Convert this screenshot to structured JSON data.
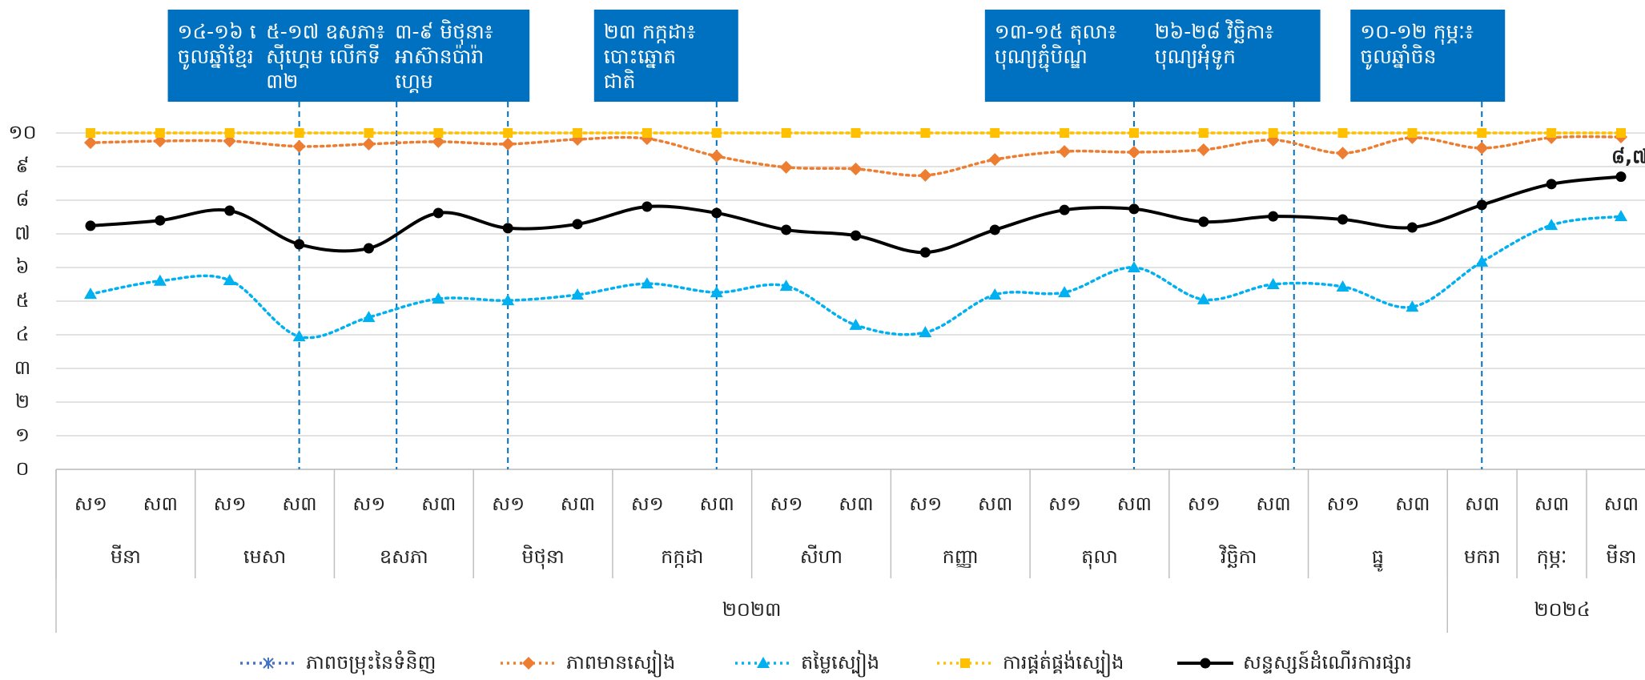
{
  "chart_data": {
    "type": "line",
    "categories": [
      "ស១",
      "ស៣",
      "ស១",
      "ស៣",
      "ស១",
      "ស៣",
      "ស១",
      "ស៣",
      "ស១",
      "ស៣",
      "ស១",
      "ស៣",
      "ស១",
      "ស៣",
      "ស១",
      "ស៣",
      "ស១",
      "ស៣",
      "ស១",
      "ស៣",
      "ស៣",
      "ស៣",
      "ស៣"
    ],
    "months": [
      "មីនា",
      null,
      "មេសា",
      null,
      "ឧសភា",
      null,
      "មិថុនា",
      null,
      "កក្កដា",
      null,
      "សីហា",
      null,
      "កញ្ញា",
      null,
      "តុលា",
      null,
      "វិច្ឆិកា",
      null,
      "ធ្នូ",
      null,
      "មករា",
      "កុម្ភៈ",
      "មីនា"
    ],
    "years": [
      "២០២៣",
      null,
      null,
      null,
      null,
      null,
      null,
      null,
      null,
      null,
      null,
      null,
      null,
      null,
      null,
      null,
      null,
      null,
      null,
      null,
      "២០២៤",
      null,
      null
    ],
    "ylim": [
      0,
      10
    ],
    "yticks": [
      {
        "value": 0,
        "label": "០"
      },
      {
        "value": 1,
        "label": "១"
      },
      {
        "value": 2,
        "label": "២"
      },
      {
        "value": 3,
        "label": "៣"
      },
      {
        "value": 4,
        "label": "៤"
      },
      {
        "value": 5,
        "label": "៥"
      },
      {
        "value": 6,
        "label": "៦"
      },
      {
        "value": 7,
        "label": "៧"
      },
      {
        "value": 8,
        "label": "៨"
      },
      {
        "value": 9,
        "label": "៩"
      },
      {
        "value": 10,
        "label": "១០"
      }
    ],
    "grid": true,
    "legend": "bottom",
    "series": [
      {
        "name": "ភាពចម្រុះនៃទំនិញ",
        "color": "#4472c4",
        "marker": "star",
        "dashed": true,
        "values": [
          null,
          null,
          null,
          null,
          null,
          null,
          null,
          null,
          null,
          null,
          null,
          null,
          null,
          null,
          null,
          null,
          null,
          null,
          null,
          null,
          null,
          null,
          null
        ]
      },
      {
        "name": "ភាពមានស្បៀង",
        "color": "#ed7d31",
        "marker": "diamond",
        "dashed": true,
        "values": [
          9.71,
          9.76,
          9.76,
          9.6,
          9.67,
          9.74,
          9.67,
          9.81,
          9.83,
          9.31,
          8.98,
          8.93,
          8.74,
          9.21,
          9.45,
          9.43,
          9.5,
          9.79,
          9.4,
          9.86,
          9.55,
          9.86,
          9.88
        ]
      },
      {
        "name": "តម្លៃស្បៀង",
        "color": "#00b0f0",
        "marker": "triangle",
        "dashed": true,
        "values": [
          5.21,
          5.6,
          5.62,
          3.95,
          4.52,
          5.07,
          5.02,
          5.19,
          5.52,
          5.26,
          5.45,
          4.29,
          4.07,
          5.19,
          5.26,
          6.0,
          5.05,
          5.5,
          5.43,
          4.83,
          6.17,
          7.26,
          7.52
        ]
      },
      {
        "name": "ការផ្គត់ផ្គង់ស្បៀង",
        "color": "#ffc000",
        "marker": "square",
        "dashed": true,
        "values": [
          10,
          10,
          10,
          10,
          10,
          10,
          10,
          10,
          10,
          10,
          10,
          10,
          10,
          10,
          10,
          10,
          10,
          10,
          10,
          10,
          10,
          10,
          10
        ]
      },
      {
        "name": "សន្ទស្សន៍ដំណើរការផ្សារ",
        "color": "#000000",
        "marker": "circle",
        "dashed": false,
        "values": [
          7.24,
          7.4,
          7.69,
          6.69,
          6.57,
          7.62,
          7.17,
          7.29,
          7.81,
          7.62,
          7.12,
          6.95,
          6.45,
          7.12,
          7.71,
          7.74,
          7.36,
          7.52,
          7.43,
          7.19,
          7.86,
          8.48,
          8.7
        ],
        "value_labels": [
          null,
          null,
          null,
          null,
          null,
          null,
          null,
          null,
          null,
          null,
          null,
          null,
          null,
          null,
          null,
          null,
          null,
          null,
          null,
          null,
          null,
          null,
          "៨,៧"
        ]
      }
    ],
    "annotations": [
      {
        "x": 3,
        "lines": [
          "១៤-១៦ មេសា៖",
          "ចូលឆ្នាំខ្មែរ"
        ]
      },
      {
        "x": 4.4,
        "lines": [
          "៥-១៧ ឧសភា៖",
          "ស៊ីហ្គេម លើកទី",
          "៣២"
        ]
      },
      {
        "x": 6,
        "lines": [
          "៣-៩ មិថុនា៖",
          "អាស៊ានប៉ារ៉ា",
          "ហ្គេម"
        ]
      },
      {
        "x": 9,
        "lines": [
          "២៣ កក្កដា៖",
          "បោះឆ្នោត",
          "ជាតិ"
        ]
      },
      {
        "x": 15,
        "lines": [
          "១៣-១៥ តុលា៖",
          "បុណ្យភ្ជុំបិណ្ឌ"
        ]
      },
      {
        "x": 17.3,
        "lines": [
          "២៦-២៨ វិច្ឆិកា៖",
          "បុណ្យអុំទូក"
        ]
      },
      {
        "x": 20,
        "lines": [
          "១០-១២ កុម្ភៈ៖",
          "ចូលឆ្នាំចិន"
        ]
      }
    ]
  }
}
